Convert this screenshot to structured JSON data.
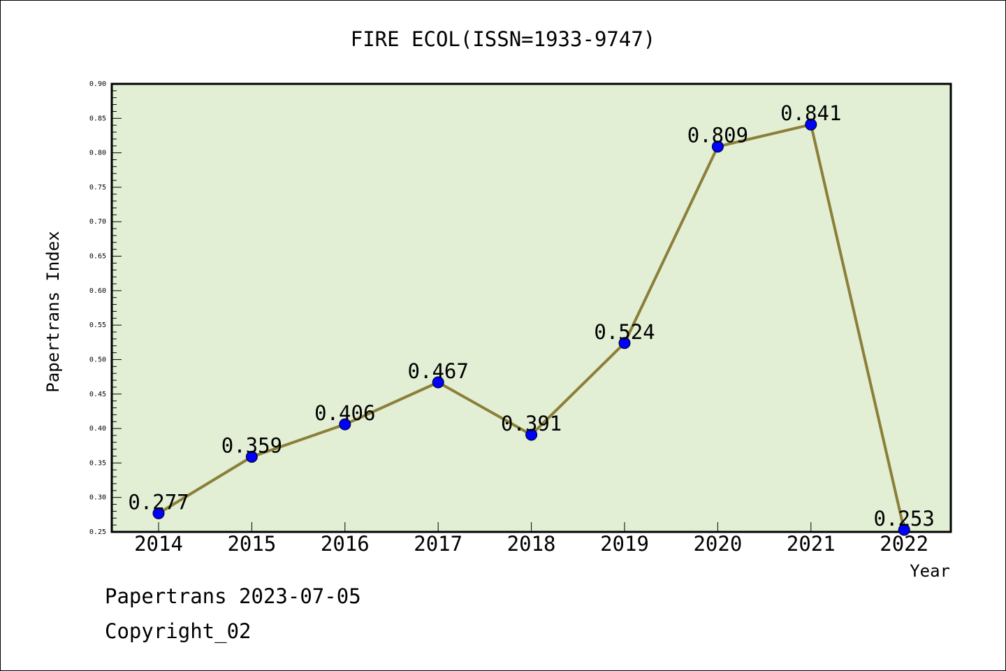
{
  "chart_data": {
    "type": "line",
    "title": "FIRE ECOL(ISSN=1933-9747)",
    "xlabel": "Year",
    "ylabel": "Papertrans Index",
    "categories": [
      "2014",
      "2015",
      "2016",
      "2017",
      "2018",
      "2019",
      "2020",
      "2021",
      "2022"
    ],
    "values": [
      0.277,
      0.359,
      0.406,
      0.467,
      0.391,
      0.524,
      0.809,
      0.841,
      0.253
    ],
    "data_labels": [
      "0.277",
      "0.359",
      "0.406",
      "0.467",
      "0.391",
      "0.524",
      "0.809",
      "0.841",
      "0.253"
    ],
    "ylim": [
      0.25,
      0.9
    ],
    "yticks": [
      "0.25",
      "0.30",
      "0.35",
      "0.40",
      "0.45",
      "0.50",
      "0.55",
      "0.60",
      "0.65",
      "0.70",
      "0.75",
      "0.80",
      "0.85",
      "0.90"
    ],
    "grid": false,
    "colors": {
      "plot_background": "#e2efd5",
      "line": "#8b7f3a",
      "marker": "#0000ff"
    }
  },
  "footer": {
    "line1": "Papertrans 2023-07-05",
    "line2": "Copyright_02"
  }
}
